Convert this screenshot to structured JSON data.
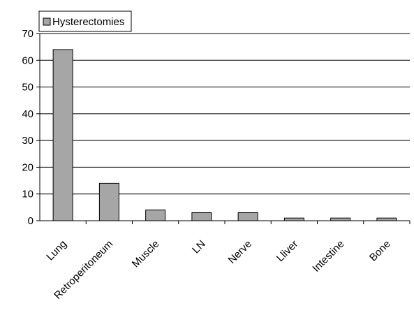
{
  "chart_data": {
    "type": "bar",
    "categories": [
      "Lung",
      "Retroperitoneum",
      "Muscle",
      "LN",
      "Nerve",
      "Lliver",
      "Intestine",
      "Bone"
    ],
    "series": [
      {
        "name": "Hysterectomies",
        "values": [
          64,
          14,
          4,
          3,
          3,
          1,
          1,
          1
        ]
      }
    ],
    "ylim": [
      0,
      70
    ],
    "yticks": [
      0,
      10,
      20,
      30,
      40,
      50,
      60,
      70
    ],
    "grid": true,
    "legend": "top-left",
    "colors": {
      "bar": "#a6a6a6",
      "bar_stroke": "#000000",
      "grid": "#000000"
    }
  }
}
